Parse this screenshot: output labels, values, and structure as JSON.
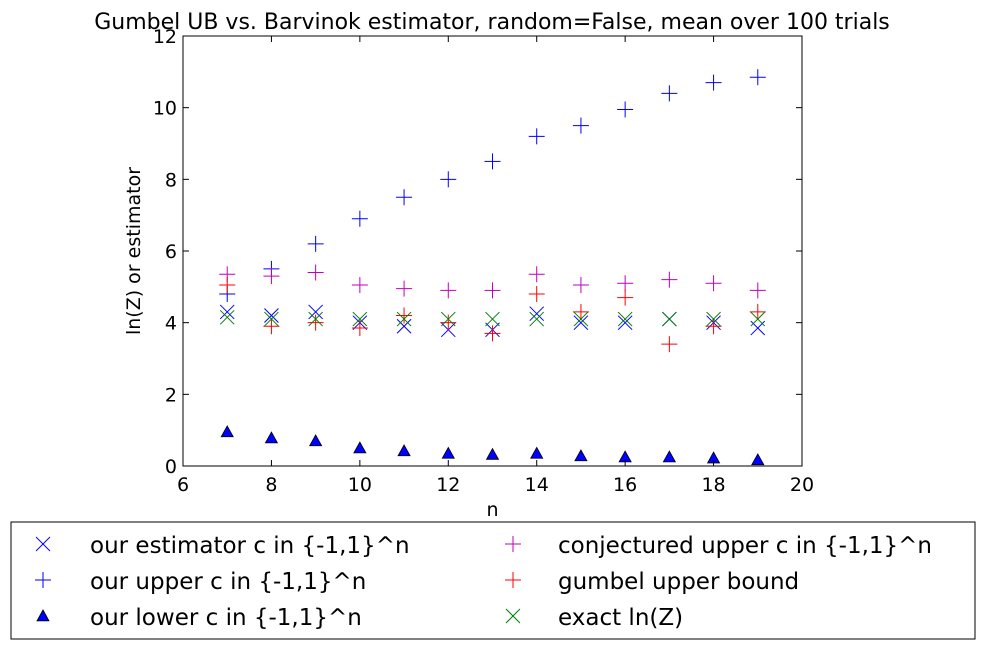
{
  "chart_data": {
    "type": "scatter",
    "title": "Gumbel UB vs. Barvinok estimator, random=False, mean over 100 trials",
    "xlabel": "n",
    "ylabel": "ln(Z) or estimator",
    "xlim": [
      6,
      20
    ],
    "ylim": [
      0,
      12
    ],
    "xticks": [
      6,
      8,
      10,
      12,
      14,
      16,
      18,
      20
    ],
    "yticks": [
      0,
      2,
      4,
      6,
      8,
      10,
      12
    ],
    "grid": false,
    "legend_position": "below",
    "x": [
      7,
      8,
      9,
      10,
      11,
      12,
      13,
      14,
      15,
      16,
      17,
      18,
      19
    ],
    "series": [
      {
        "name": "our estimator c in {-1,1}^n",
        "marker": "x",
        "color": "#0000ff",
        "values": [
          4.3,
          4.2,
          4.3,
          4.0,
          3.9,
          3.8,
          3.8,
          4.25,
          4.0,
          4.0,
          4.1,
          4.0,
          3.85
        ]
      },
      {
        "name": "our upper c in {-1,1}^n",
        "marker": "+",
        "color": "#0000ff",
        "values": [
          4.8,
          5.5,
          6.2,
          6.9,
          7.5,
          8.0,
          8.5,
          9.2,
          9.5,
          9.95,
          10.4,
          10.7,
          10.85
        ]
      },
      {
        "name": "our lower c in {-1,1}^n",
        "marker": "triangle",
        "color": "#0000ff",
        "values": [
          0.95,
          0.78,
          0.7,
          0.5,
          0.42,
          0.35,
          0.32,
          0.35,
          0.28,
          0.25,
          0.25,
          0.22,
          0.17
        ]
      },
      {
        "name": "conjectured upper c in {-1,1}^n",
        "marker": "+",
        "color": "#bf00bf",
        "values": [
          5.35,
          5.3,
          5.4,
          5.05,
          4.95,
          4.9,
          4.9,
          5.35,
          5.05,
          5.1,
          5.2,
          5.1,
          4.9
        ]
      },
      {
        "name": "gumbel upper bound",
        "marker": "+",
        "color": "#ff0000",
        "values": [
          5.05,
          3.9,
          4.0,
          3.85,
          4.2,
          4.0,
          3.7,
          4.8,
          4.3,
          4.7,
          3.4,
          3.9,
          4.3
        ]
      },
      {
        "name": "exact ln(Z)",
        "marker": "x",
        "color": "#008000",
        "values": [
          4.15,
          4.1,
          4.1,
          4.1,
          4.1,
          4.1,
          4.1,
          4.1,
          4.1,
          4.1,
          4.1,
          4.1,
          4.1
        ]
      }
    ]
  }
}
